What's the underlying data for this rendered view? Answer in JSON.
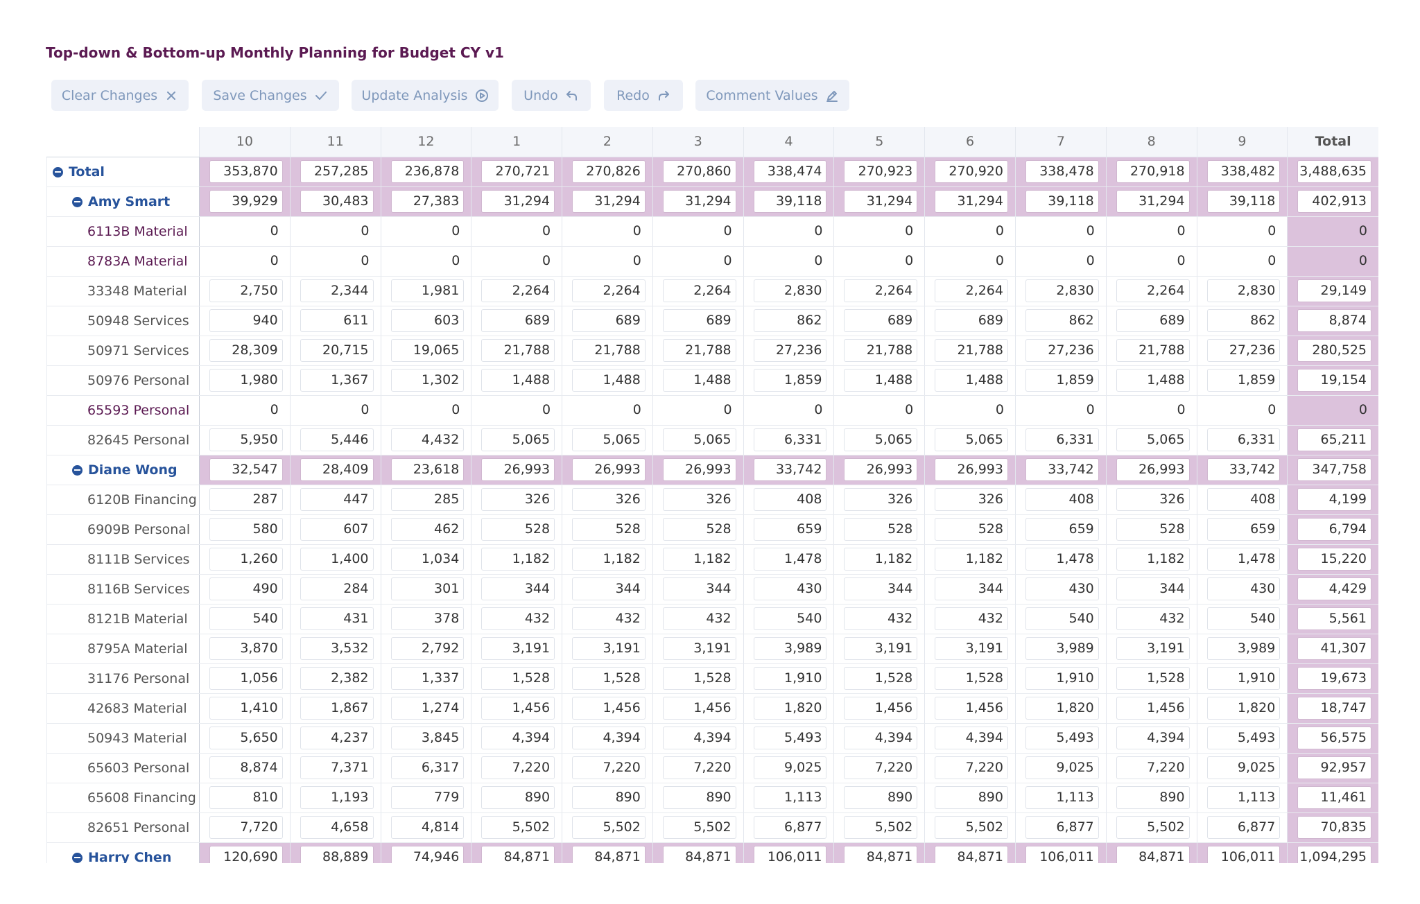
{
  "title": "Top-down & Bottom-up Monthly Planning for Budget CY v1",
  "toolbar": [
    {
      "label": "Clear Changes",
      "icon": "close-icon"
    },
    {
      "label": "Save Changes",
      "icon": "check-icon"
    },
    {
      "label": "Update Analysis",
      "icon": "play-circle-icon"
    },
    {
      "label": "Undo",
      "icon": "undo-icon"
    },
    {
      "label": "Redo",
      "icon": "redo-icon"
    },
    {
      "label": "Comment Values",
      "icon": "pencil-icon"
    }
  ],
  "columns": [
    "10",
    "11",
    "12",
    "1",
    "2",
    "3",
    "4",
    "5",
    "6",
    "7",
    "8",
    "9",
    "Total"
  ],
  "rows": [
    {
      "label": "Total",
      "level": 0,
      "agg": true,
      "values": [
        "353,870",
        "257,285",
        "236,878",
        "270,721",
        "270,826",
        "270,860",
        "338,474",
        "270,923",
        "270,920",
        "338,478",
        "270,918",
        "338,482",
        "3,488,635"
      ]
    },
    {
      "label": "Amy Smart",
      "level": 1,
      "agg": true,
      "values": [
        "39,929",
        "30,483",
        "27,383",
        "31,294",
        "31,294",
        "31,294",
        "39,118",
        "31,294",
        "31,294",
        "39,118",
        "31,294",
        "39,118",
        "402,913"
      ]
    },
    {
      "label": "6113B Material",
      "level": 2,
      "plain": true,
      "values": [
        "0",
        "0",
        "0",
        "0",
        "0",
        "0",
        "0",
        "0",
        "0",
        "0",
        "0",
        "0",
        "0"
      ]
    },
    {
      "label": "8783A Material",
      "level": 2,
      "plain": true,
      "values": [
        "0",
        "0",
        "0",
        "0",
        "0",
        "0",
        "0",
        "0",
        "0",
        "0",
        "0",
        "0",
        "0"
      ]
    },
    {
      "label": "33348 Material",
      "level": 2,
      "values": [
        "2,750",
        "2,344",
        "1,981",
        "2,264",
        "2,264",
        "2,264",
        "2,830",
        "2,264",
        "2,264",
        "2,830",
        "2,264",
        "2,830",
        "29,149"
      ]
    },
    {
      "label": "50948 Services",
      "level": 2,
      "values": [
        "940",
        "611",
        "603",
        "689",
        "689",
        "689",
        "862",
        "689",
        "689",
        "862",
        "689",
        "862",
        "8,874"
      ]
    },
    {
      "label": "50971 Services",
      "level": 2,
      "values": [
        "28,309",
        "20,715",
        "19,065",
        "21,788",
        "21,788",
        "21,788",
        "27,236",
        "21,788",
        "21,788",
        "27,236",
        "21,788",
        "27,236",
        "280,525"
      ]
    },
    {
      "label": "50976 Personal",
      "level": 2,
      "values": [
        "1,980",
        "1,367",
        "1,302",
        "1,488",
        "1,488",
        "1,488",
        "1,859",
        "1,488",
        "1,488",
        "1,859",
        "1,488",
        "1,859",
        "19,154"
      ]
    },
    {
      "label": "65593 Personal",
      "level": 2,
      "plain": true,
      "values": [
        "0",
        "0",
        "0",
        "0",
        "0",
        "0",
        "0",
        "0",
        "0",
        "0",
        "0",
        "0",
        "0"
      ]
    },
    {
      "label": "82645 Personal",
      "level": 2,
      "values": [
        "5,950",
        "5,446",
        "4,432",
        "5,065",
        "5,065",
        "5,065",
        "6,331",
        "5,065",
        "5,065",
        "6,331",
        "5,065",
        "6,331",
        "65,211"
      ]
    },
    {
      "label": "Diane Wong",
      "level": 1,
      "agg": true,
      "values": [
        "32,547",
        "28,409",
        "23,618",
        "26,993",
        "26,993",
        "26,993",
        "33,742",
        "26,993",
        "26,993",
        "33,742",
        "26,993",
        "33,742",
        "347,758"
      ]
    },
    {
      "label": "6120B Financing",
      "level": 2,
      "values": [
        "287",
        "447",
        "285",
        "326",
        "326",
        "326",
        "408",
        "326",
        "326",
        "408",
        "326",
        "408",
        "4,199"
      ]
    },
    {
      "label": "6909B Personal",
      "level": 2,
      "values": [
        "580",
        "607",
        "462",
        "528",
        "528",
        "528",
        "659",
        "528",
        "528",
        "659",
        "528",
        "659",
        "6,794"
      ]
    },
    {
      "label": "8111B Services",
      "level": 2,
      "values": [
        "1,260",
        "1,400",
        "1,034",
        "1,182",
        "1,182",
        "1,182",
        "1,478",
        "1,182",
        "1,182",
        "1,478",
        "1,182",
        "1,478",
        "15,220"
      ]
    },
    {
      "label": "8116B Services",
      "level": 2,
      "values": [
        "490",
        "284",
        "301",
        "344",
        "344",
        "344",
        "430",
        "344",
        "344",
        "430",
        "344",
        "430",
        "4,429"
      ]
    },
    {
      "label": "8121B Material",
      "level": 2,
      "values": [
        "540",
        "431",
        "378",
        "432",
        "432",
        "432",
        "540",
        "432",
        "432",
        "540",
        "432",
        "540",
        "5,561"
      ]
    },
    {
      "label": "8795A Material",
      "level": 2,
      "values": [
        "3,870",
        "3,532",
        "2,792",
        "3,191",
        "3,191",
        "3,191",
        "3,989",
        "3,191",
        "3,191",
        "3,989",
        "3,191",
        "3,989",
        "41,307"
      ]
    },
    {
      "label": "31176 Personal",
      "level": 2,
      "values": [
        "1,056",
        "2,382",
        "1,337",
        "1,528",
        "1,528",
        "1,528",
        "1,910",
        "1,528",
        "1,528",
        "1,910",
        "1,528",
        "1,910",
        "19,673"
      ]
    },
    {
      "label": "42683 Material",
      "level": 2,
      "values": [
        "1,410",
        "1,867",
        "1,274",
        "1,456",
        "1,456",
        "1,456",
        "1,820",
        "1,456",
        "1,456",
        "1,820",
        "1,456",
        "1,820",
        "18,747"
      ]
    },
    {
      "label": "50943 Material",
      "level": 2,
      "values": [
        "5,650",
        "4,237",
        "3,845",
        "4,394",
        "4,394",
        "4,394",
        "5,493",
        "4,394",
        "4,394",
        "5,493",
        "4,394",
        "5,493",
        "56,575"
      ]
    },
    {
      "label": "65603 Personal",
      "level": 2,
      "values": [
        "8,874",
        "7,371",
        "6,317",
        "7,220",
        "7,220",
        "7,220",
        "9,025",
        "7,220",
        "7,220",
        "9,025",
        "7,220",
        "9,025",
        "92,957"
      ]
    },
    {
      "label": "65608 Financing",
      "level": 2,
      "values": [
        "810",
        "1,193",
        "779",
        "890",
        "890",
        "890",
        "1,113",
        "890",
        "890",
        "1,113",
        "890",
        "1,113",
        "11,461"
      ]
    },
    {
      "label": "82651 Personal",
      "level": 2,
      "values": [
        "7,720",
        "4,658",
        "4,814",
        "5,502",
        "5,502",
        "5,502",
        "6,877",
        "5,502",
        "5,502",
        "6,877",
        "5,502",
        "6,877",
        "70,835"
      ]
    },
    {
      "label": "Harry Chen",
      "level": 1,
      "agg": true,
      "values": [
        "120,690",
        "88,889",
        "74,946",
        "84,871",
        "84,871",
        "84,871",
        "106,011",
        "84,871",
        "84,871",
        "106,011",
        "84,871",
        "106,011",
        "1,094,295"
      ]
    }
  ]
}
